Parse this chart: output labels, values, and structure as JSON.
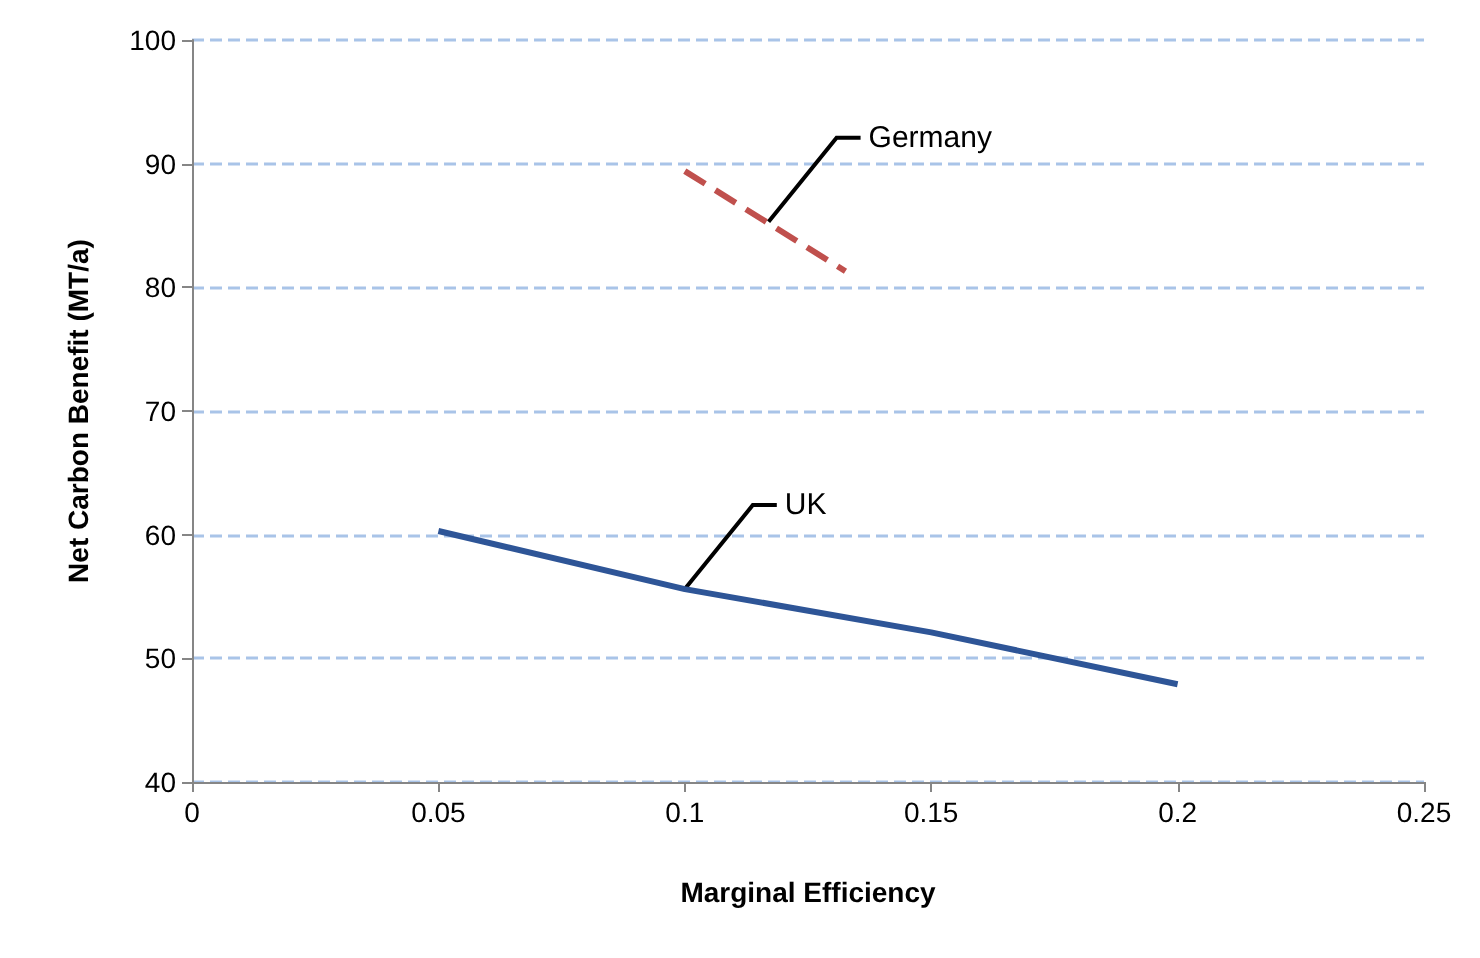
{
  "chart_data": {
    "type": "line",
    "xlabel": "Marginal Efficiency",
    "ylabel": "Net Carbon Benefit (MT/a)",
    "xlim": [
      0,
      0.25
    ],
    "xticks": [
      0,
      0.05,
      0.1,
      0.15,
      0.2,
      0.25
    ],
    "ylim": [
      40,
      100
    ],
    "yticks": [
      40,
      50,
      60,
      70,
      80,
      90,
      100
    ],
    "grid": "y",
    "marker": "none",
    "series": [
      {
        "color": "#2e5597",
        "line_style": "solid",
        "x": [
          0.05,
          0.1,
          0.15,
          0.2
        ],
        "values": [
          60.3,
          55.6,
          52.1,
          47.9
        ]
      },
      {
        "color": "#c0504d",
        "line_style": "dashed",
        "x": [
          0.1,
          0.1326
        ],
        "values": [
          89.4,
          81.3
        ]
      }
    ],
    "annotations": [
      {
        "text": "UK",
        "x": 0.1,
        "y": 55.6
      },
      {
        "text": "Germany",
        "x": 0.117,
        "y": 85.3
      }
    ]
  }
}
